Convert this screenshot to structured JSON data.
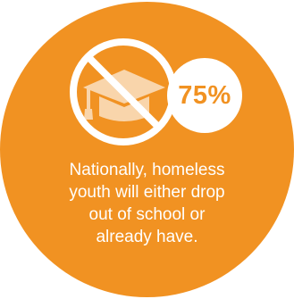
{
  "stat": {
    "value": "75%"
  },
  "caption": {
    "lines": [
      "Nationally, homeless",
      "youth will either drop",
      "out of school or",
      "already have."
    ]
  },
  "icons": {
    "main": "no-graduation-cap-icon"
  },
  "colors": {
    "accent": "#f19222",
    "foreground": "#ffffff",
    "cap": "#f9d5ab"
  }
}
